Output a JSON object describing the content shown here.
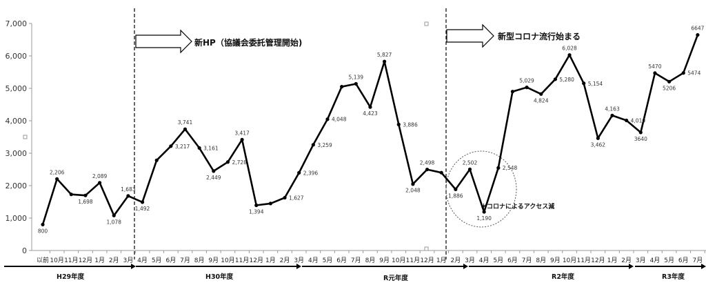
{
  "chart_data": {
    "type": "line",
    "title": "",
    "xlabel": "",
    "ylabel": "",
    "ylim": [
      0,
      7000
    ],
    "yticks": [
      "0",
      "1,000",
      "2,000",
      "3,000",
      "4,000",
      "5,000",
      "6,000",
      "7,000"
    ],
    "grid": false,
    "categories": [
      "以前",
      "10月",
      "11月",
      "12月",
      "1月",
      "2月",
      "3月",
      "4月",
      "5月",
      "6月",
      "7月",
      "8月",
      "9月",
      "10月",
      "11月",
      "12月",
      "1月",
      "2月",
      "3月",
      "4月",
      "5月",
      "6月",
      "7月",
      "8月",
      "9月",
      "10月",
      "11月",
      "12月",
      "1月",
      "2月",
      "3月",
      "4月",
      "5月",
      "6月",
      "7月",
      "8月",
      "9月",
      "10月",
      "11月",
      "12月",
      "1月",
      "2月",
      "3月",
      "4月",
      "5月",
      "6月",
      "7月"
    ],
    "series": [
      {
        "values": [
          800,
          2206,
          1730,
          1698,
          2089,
          1078,
          1683,
          1492,
          2780,
          3217,
          3741,
          3161,
          2449,
          2728,
          3417,
          1394,
          1450,
          1627,
          2396,
          3259,
          4048,
          5050,
          5139,
          4423,
          5827,
          3886,
          2048,
          2498,
          2400,
          1886,
          2502,
          1190,
          2548,
          4900,
          5029,
          4824,
          5280,
          6028,
          5154,
          3462,
          4163,
          4010,
          3640,
          5470,
          5206,
          5474,
          6647
        ],
        "labels": [
          "800",
          "2,206",
          "",
          "1,698",
          "2,089",
          "1,078",
          "1,683",
          "1,492",
          "",
          "3,217",
          "3,741",
          "3,161",
          "2,449",
          "2,728",
          "3,417",
          "1,394",
          "",
          "1,627",
          "2,396",
          "3,259",
          "4,048",
          "",
          "5,139",
          "4,423",
          "5,827",
          "3,886",
          "2,048",
          "2,498",
          "",
          "1,886",
          "2,502",
          "1,190",
          "2,548",
          "",
          "5,029",
          "4,824",
          "5,280",
          "6,028",
          "5,154",
          "3,462",
          "4,163",
          "4,010",
          "3640",
          "5470",
          "5206",
          "5474",
          "6647"
        ]
      }
    ],
    "fiscal_years": [
      "H29年度",
      "H30年度",
      "R元年度",
      "R2年度",
      "R3年度"
    ],
    "annotations": {
      "new_hp": "新HP（協議会委託管理開始)",
      "corona_start": "新型コロナ流行始まる",
      "corona_decrease": "＊コロナによるアクセス減"
    }
  }
}
